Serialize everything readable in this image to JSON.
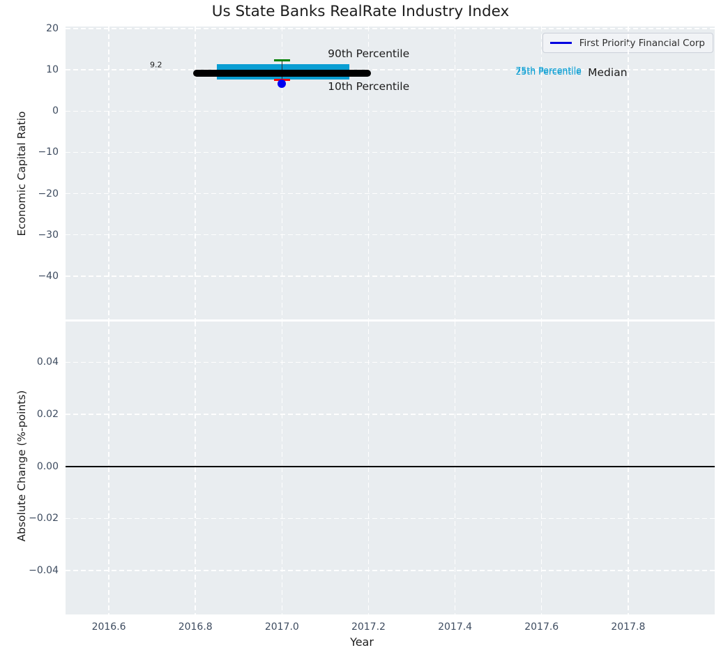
{
  "legend": {
    "label": "First Priority Financial Corp"
  },
  "colors": {
    "figure_bg": "#ffffff",
    "plot_bg": "#e9edf0",
    "grid": "#ffffff",
    "tick_text": "#3d4b5f",
    "label_text": "#1c1c1c",
    "box_fill": "#0a9ed3",
    "median_line": "#000000",
    "p90_cap": "#008000",
    "p10_cap": "#ff0000",
    "whisker_stem": "#2b2b2b",
    "company_marker": "#0000f0",
    "legend_line": "#0000e0",
    "zero_line": "#000000"
  },
  "chart_data": [
    {
      "type": "box",
      "title": "Us State Banks RealRate Industry Index",
      "ylabel": "Economic Capital Ratio",
      "xlim": [
        2016.5,
        2018.0
      ],
      "ylim": [
        -50.5,
        20.5
      ],
      "xticks": {
        "values": [
          2016.6,
          2016.8,
          2017.0,
          2017.2,
          2017.4,
          2017.6,
          2017.8
        ],
        "labels": [
          "2016.6",
          "2016.8",
          "2017.0",
          "2017.2",
          "2017.4",
          "2017.6",
          "2017.8"
        ],
        "show_labels": false
      },
      "yticks": {
        "values": [
          20,
          10,
          0,
          -10,
          -20,
          -30,
          -40
        ],
        "labels": [
          "20",
          "10",
          "0",
          "−10",
          "−20",
          "−30",
          "−40"
        ]
      },
      "industry_stats": {
        "x_center": 2017.0,
        "median": 9.2,
        "p90": 12.3,
        "p75": 11.4,
        "p25": 7.7,
        "p10": 7.5,
        "box_x": [
          2016.85,
          2017.155
        ],
        "median_x": [
          2016.795,
          2017.205
        ],
        "cap_halfwidth": 0.0185
      },
      "company": {
        "name": "First Priority Financial Corp",
        "x": 2017.0,
        "y": 6.6
      },
      "annotations": [
        {
          "text": "90th Percentile",
          "x": 2017.106,
          "y": 13.7,
          "size": 15.5,
          "color": "#1c1c1c"
        },
        {
          "text": "10th Percentile",
          "x": 2017.106,
          "y": 5.8,
          "size": 15.5,
          "color": "#1c1c1c"
        },
        {
          "text": "75th Percentile",
          "x": 2017.54,
          "y": 9.9,
          "size": 12.5,
          "color": "#0a9ed3"
        },
        {
          "text": "25th Percentile",
          "x": 2017.54,
          "y": 9.5,
          "size": 12.5,
          "color": "#0a9ed3"
        },
        {
          "text": "Median",
          "x": 2017.707,
          "y": 9.2,
          "size": 15.5,
          "color": "#1c1c1c"
        },
        {
          "text": "9.2",
          "x": 2016.695,
          "y": 11.0,
          "size": 11,
          "color": "#1c1c1c"
        }
      ]
    },
    {
      "type": "line",
      "ylabel": "Absolute Change (%-points)",
      "xlabel": "Year",
      "xlim": [
        2016.5,
        2018.0
      ],
      "ylim": [
        -0.0568,
        0.0556
      ],
      "xticks": {
        "values": [
          2016.6,
          2016.8,
          2017.0,
          2017.2,
          2017.4,
          2017.6,
          2017.8
        ],
        "labels": [
          "2016.6",
          "2016.8",
          "2017.0",
          "2017.2",
          "2017.4",
          "2017.6",
          "2017.8"
        ],
        "show_labels": true
      },
      "yticks": {
        "values": [
          0.04,
          0.02,
          0.0,
          -0.02,
          -0.04
        ],
        "labels": [
          "0.04",
          "0.02",
          "0.00",
          "−0.02",
          "−0.04"
        ]
      },
      "zero_line": 0.0
    }
  ]
}
